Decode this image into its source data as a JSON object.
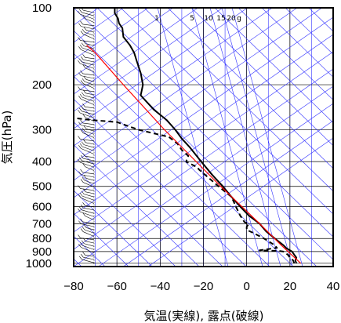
{
  "chart_data": {
    "type": "line",
    "subtype": "skew-T log-p diagram",
    "xlabel": "気温(実線), 露点(破線)",
    "ylabel": "気圧(hPa)",
    "xlim": [
      -80,
      40
    ],
    "ylim": [
      1030,
      100
    ],
    "y_scale": "log",
    "x_ticks": [
      "−80",
      "−60",
      "−40",
      "−20",
      "0",
      "20",
      "40"
    ],
    "y_ticks": [
      "100",
      "200",
      "300",
      "400",
      "500",
      "600",
      "700",
      "800",
      "900",
      "1000"
    ],
    "mixing_ratio_labels": [
      "1",
      "5",
      "10",
      "15",
      "20",
      "g"
    ],
    "colors": {
      "temperature": "#000000",
      "dewpoint": "#000000",
      "parcel": "#ff0000",
      "reference_lines": "#3333ff",
      "moist_adiabat": "#880000"
    },
    "series": [
      {
        "style": "solid",
        "points": [
          [
            1000,
            23
          ],
          [
            975,
            22.5
          ],
          [
            950,
            23
          ],
          [
            925,
            22
          ],
          [
            900,
            21
          ],
          [
            875,
            18.5
          ],
          [
            850,
            17
          ],
          [
            800,
            13
          ],
          [
            750,
            9
          ],
          [
            700,
            6
          ],
          [
            650,
            1
          ],
          [
            600,
            -3
          ],
          [
            550,
            -7
          ],
          [
            500,
            -11
          ],
          [
            450,
            -16
          ],
          [
            400,
            -21
          ],
          [
            350,
            -26.5
          ],
          [
            325,
            -30
          ],
          [
            300,
            -33
          ],
          [
            275,
            -37
          ],
          [
            250,
            -43
          ],
          [
            225,
            -48
          ],
          [
            220,
            -49
          ],
          [
            210,
            -48.5
          ],
          [
            200,
            -48
          ],
          [
            180,
            -49
          ],
          [
            170,
            -50
          ],
          [
            160,
            -51
          ],
          [
            150,
            -52
          ],
          [
            140,
            -54
          ],
          [
            130,
            -57
          ],
          [
            120,
            -57.5
          ],
          [
            115,
            -59
          ],
          [
            110,
            -59.5
          ],
          [
            105,
            -61
          ],
          [
            100,
            -61
          ]
        ]
      },
      {
        "style": "dashed",
        "points": [
          [
            1000,
            22
          ],
          [
            975,
            21.5
          ],
          [
            950,
            20
          ],
          [
            925,
            19
          ],
          [
            900,
            17
          ],
          [
            895,
            15
          ],
          [
            890,
            6
          ],
          [
            880,
            10
          ],
          [
            870,
            14
          ],
          [
            850,
            13
          ],
          [
            800,
            8
          ],
          [
            760,
            3
          ],
          [
            740,
            0
          ],
          [
            720,
            0
          ],
          [
            700,
            1
          ],
          [
            690,
            -1
          ],
          [
            650,
            -3
          ],
          [
            600,
            -5
          ],
          [
            550,
            -7
          ],
          [
            500,
            -13
          ],
          [
            460,
            -18
          ],
          [
            430,
            -22
          ],
          [
            420,
            -23
          ],
          [
            400,
            -28
          ],
          [
            380,
            -27
          ],
          [
            360,
            -30
          ],
          [
            340,
            -32
          ],
          [
            320,
            -36
          ],
          [
            310,
            -43
          ],
          [
            300,
            -50
          ],
          [
            290,
            -55
          ],
          [
            280,
            -60
          ],
          [
            275,
            -72
          ],
          [
            270,
            -80
          ]
        ]
      },
      {
        "style": "solid",
        "color": "#ff0000",
        "points": [
          [
            1000,
            25
          ],
          [
            850,
            16
          ],
          [
            700,
            6
          ],
          [
            500,
            -12
          ],
          [
            300,
            -38
          ],
          [
            200,
            -57
          ],
          [
            150,
            -70
          ],
          [
            140,
            -74
          ]
        ]
      }
    ],
    "wind_profile": true
  }
}
